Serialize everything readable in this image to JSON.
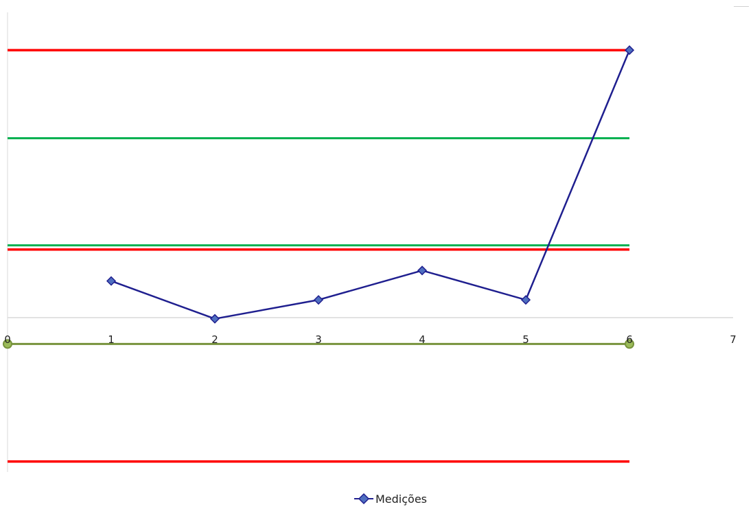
{
  "chart_data": {
    "type": "line",
    "title": "",
    "xlabel": "",
    "ylabel": "",
    "xlim": [
      0,
      7
    ],
    "ylim": [
      -6.1,
      15.8
    ],
    "x_ticks": [
      "0",
      "1",
      "2",
      "3",
      "4",
      "5",
      "6",
      "7"
    ],
    "grid": false,
    "legend_position": "bottom",
    "series": [
      {
        "name": "Medições",
        "color": "#1f1f8f",
        "marker": "diamond",
        "x": [
          1,
          2,
          3,
          4,
          5,
          6
        ],
        "y": [
          3.0,
          1.2,
          2.1,
          3.5,
          2.1,
          14.0
        ]
      }
    ],
    "reference_lines": [
      {
        "color": "#ff0000",
        "y": 14.0,
        "x": [
          0,
          6
        ]
      },
      {
        "color": "#00b050",
        "y": 9.8,
        "x": [
          0,
          6
        ]
      },
      {
        "color": "#00b050",
        "y": 4.7,
        "x": [
          0,
          6
        ]
      },
      {
        "color": "#ff0000",
        "y": 4.5,
        "x": [
          0,
          6
        ]
      },
      {
        "color": "#77933c",
        "y": 0.0,
        "x": [
          0,
          6
        ],
        "endpoint_markers": true
      },
      {
        "color": "#ff0000",
        "y": -5.6,
        "x": [
          0,
          6
        ]
      }
    ]
  }
}
